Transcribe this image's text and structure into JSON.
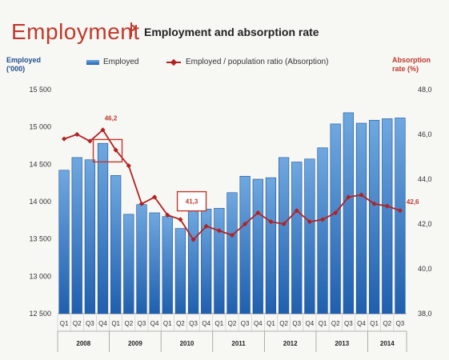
{
  "header": {
    "title": "Employment",
    "subtitle": "",
    "chart_title": "Employment and absorption rate"
  },
  "legend": {
    "bar_label": "Employed",
    "line_label": "Employed / population ratio (Absorption)"
  },
  "colors": {
    "bar_top": "#6fa8e0",
    "bar_bottom": "#1f5fae",
    "line": "#b22222",
    "accent": "#c0392b"
  },
  "chart_data": {
    "type": "bar",
    "title": "Employment and absorption rate",
    "ylabel": "Employed ('000)",
    "y2label": "Absorption rate (%)",
    "ylim": [
      12500,
      15500
    ],
    "y2lim": [
      38.0,
      48.0
    ],
    "yticks": [
      "12 500",
      "13 000",
      "13 500",
      "14 000",
      "14 500",
      "15 000",
      "15 500"
    ],
    "y2ticks": [
      "38,0",
      "40,0",
      "42,0",
      "44,0",
      "46,0",
      "48,0"
    ],
    "categories": [
      "Q1",
      "Q2",
      "Q3",
      "Q4",
      "Q1",
      "Q2",
      "Q3",
      "Q4",
      "Q1",
      "Q2",
      "Q3",
      "Q4",
      "Q1",
      "Q2",
      "Q3",
      "Q4",
      "Q1",
      "Q2",
      "Q3",
      "Q4",
      "Q1",
      "Q2",
      "Q3",
      "Q4",
      "Q1",
      "Q2",
      "Q3"
    ],
    "years": [
      {
        "label": "2008",
        "start": 0,
        "count": 4
      },
      {
        "label": "2009",
        "start": 4,
        "count": 4
      },
      {
        "label": "2010",
        "start": 8,
        "count": 4
      },
      {
        "label": "2011",
        "start": 12,
        "count": 4
      },
      {
        "label": "2012",
        "start": 16,
        "count": 4
      },
      {
        "label": "2013",
        "start": 20,
        "count": 4
      },
      {
        "label": "2014",
        "start": 24,
        "count": 3
      }
    ],
    "series": [
      {
        "name": "Employed",
        "kind": "bar",
        "values": [
          14420,
          14590,
          14560,
          14780,
          14350,
          13830,
          13960,
          13850,
          13800,
          13640,
          13880,
          13900,
          13910,
          14120,
          14340,
          14300,
          14320,
          14590,
          14530,
          14570,
          14720,
          15040,
          15190,
          15050,
          15090,
          15110,
          15120
        ]
      },
      {
        "name": "Employed / population ratio (Absorption)",
        "kind": "line",
        "axis": "right",
        "values": [
          45.8,
          46.0,
          45.7,
          46.2,
          45.3,
          44.6,
          42.9,
          43.2,
          42.4,
          42.2,
          41.3,
          41.9,
          41.7,
          41.5,
          42.0,
          42.5,
          42.1,
          42.0,
          42.6,
          42.1,
          42.2,
          42.5,
          43.2,
          43.3,
          42.9,
          42.8,
          42.6
        ]
      }
    ],
    "annotations": [
      {
        "index": 3,
        "value": "46,2"
      },
      {
        "index": 10,
        "value": "41,3"
      },
      {
        "index": 26,
        "value": "42,6"
      }
    ],
    "grid": false,
    "legend_position": "top"
  }
}
